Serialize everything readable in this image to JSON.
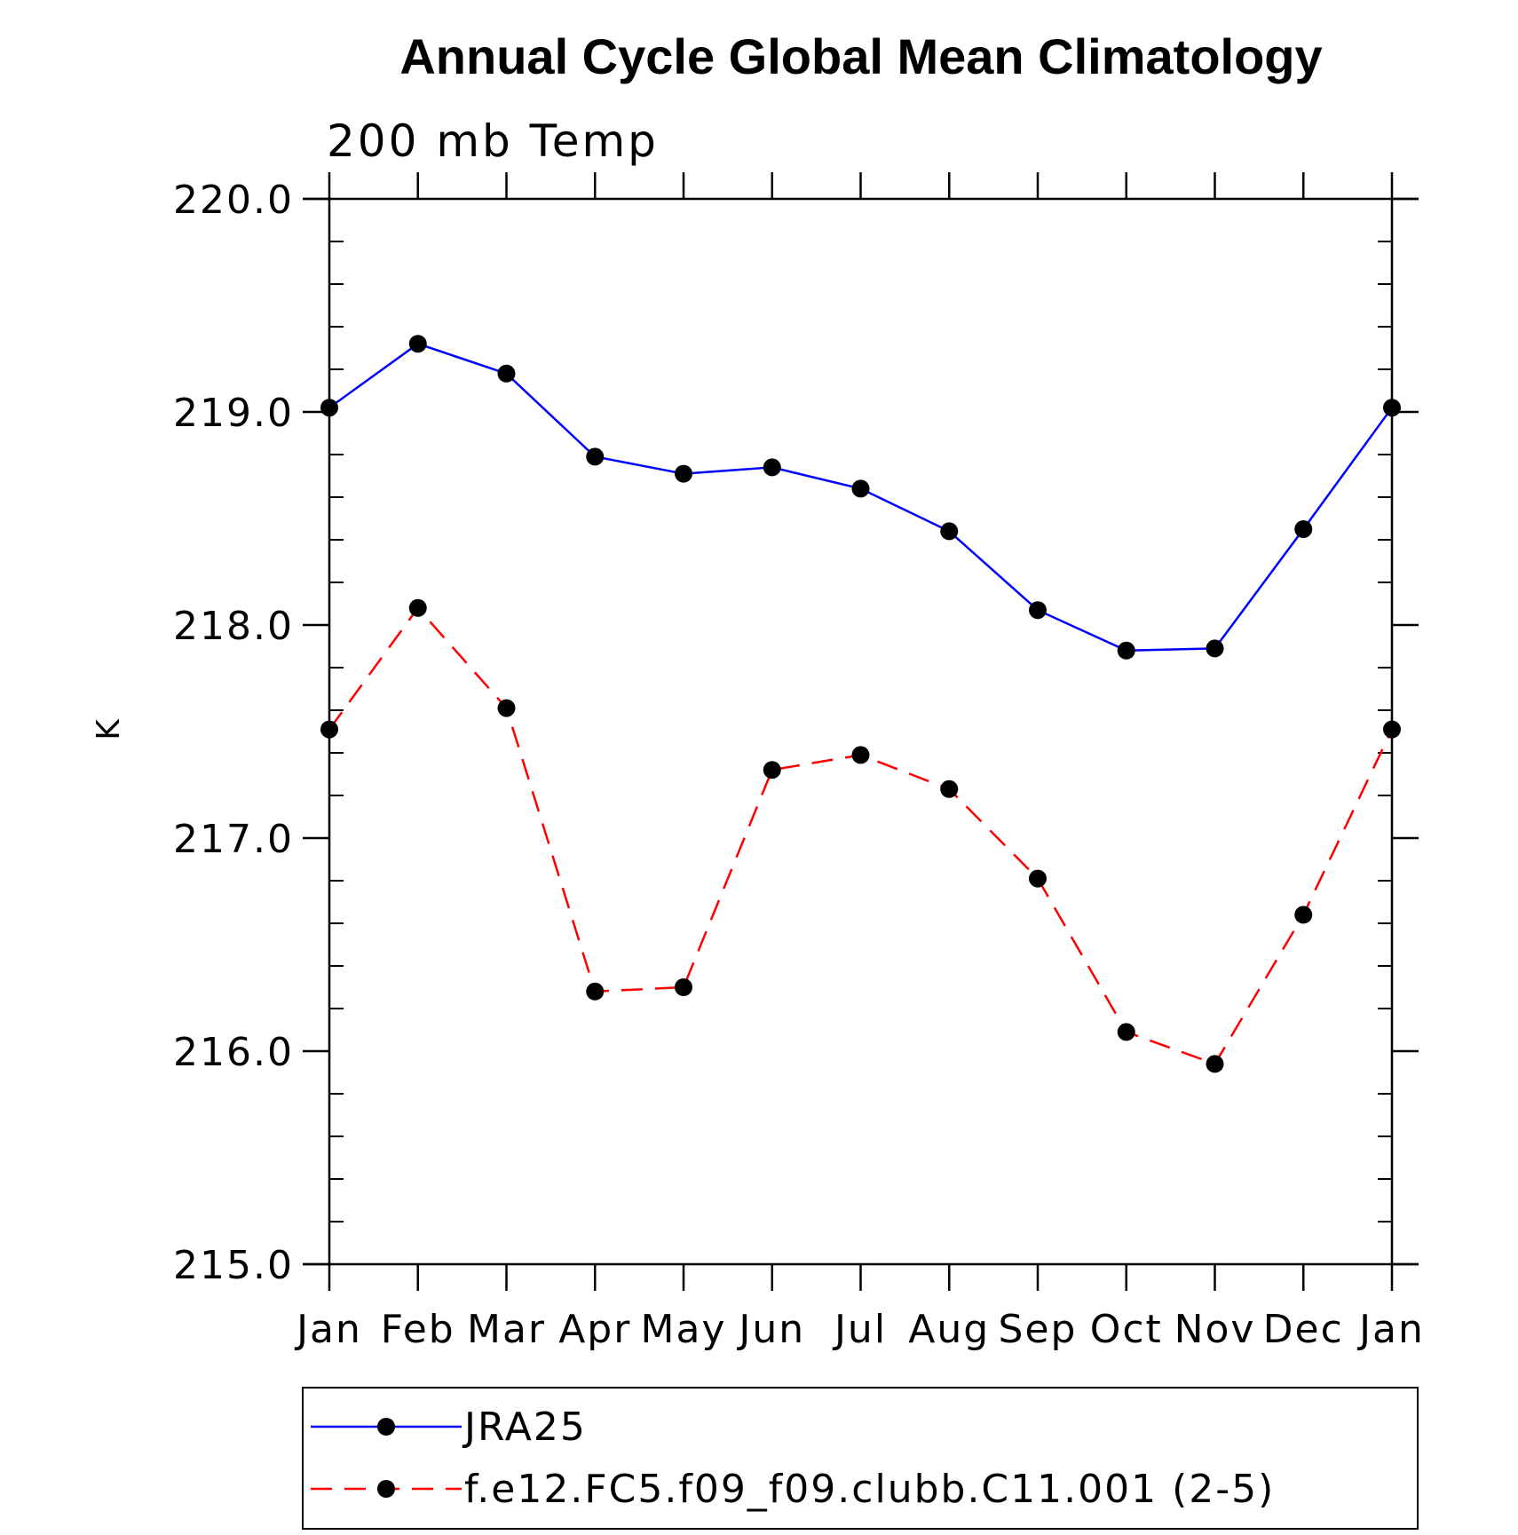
{
  "chart_data": {
    "type": "line",
    "title": "Annual Cycle Global Mean Climatology",
    "subtitle": "200 mb Temp",
    "xlabel": "",
    "ylabel": "K",
    "categories": [
      "Jan",
      "Feb",
      "Mar",
      "Apr",
      "May",
      "Jun",
      "Jul",
      "Aug",
      "Sep",
      "Oct",
      "Nov",
      "Dec",
      "Jan"
    ],
    "ylim": [
      215.0,
      220.0
    ],
    "yticks": [
      "215.0",
      "216.0",
      "217.0",
      "218.0",
      "219.0",
      "220.0"
    ],
    "series": [
      {
        "name": "JRA25",
        "color": "#0000ff",
        "line_style": "solid",
        "marker": "filled-circle",
        "values": [
          219.02,
          219.32,
          219.18,
          218.79,
          218.71,
          218.74,
          218.64,
          218.44,
          218.07,
          217.88,
          217.89,
          218.45,
          219.02
        ]
      },
      {
        "name": "f.e12.FC5.f09_f09.clubb.C11.001 (2-5)",
        "color": "#ff0000",
        "line_style": "dashed",
        "marker": "filled-circle",
        "values": [
          217.51,
          218.08,
          217.61,
          216.28,
          216.3,
          217.32,
          217.39,
          217.23,
          216.81,
          216.09,
          215.94,
          216.64,
          217.51
        ]
      }
    ],
    "legend": "bottom"
  }
}
